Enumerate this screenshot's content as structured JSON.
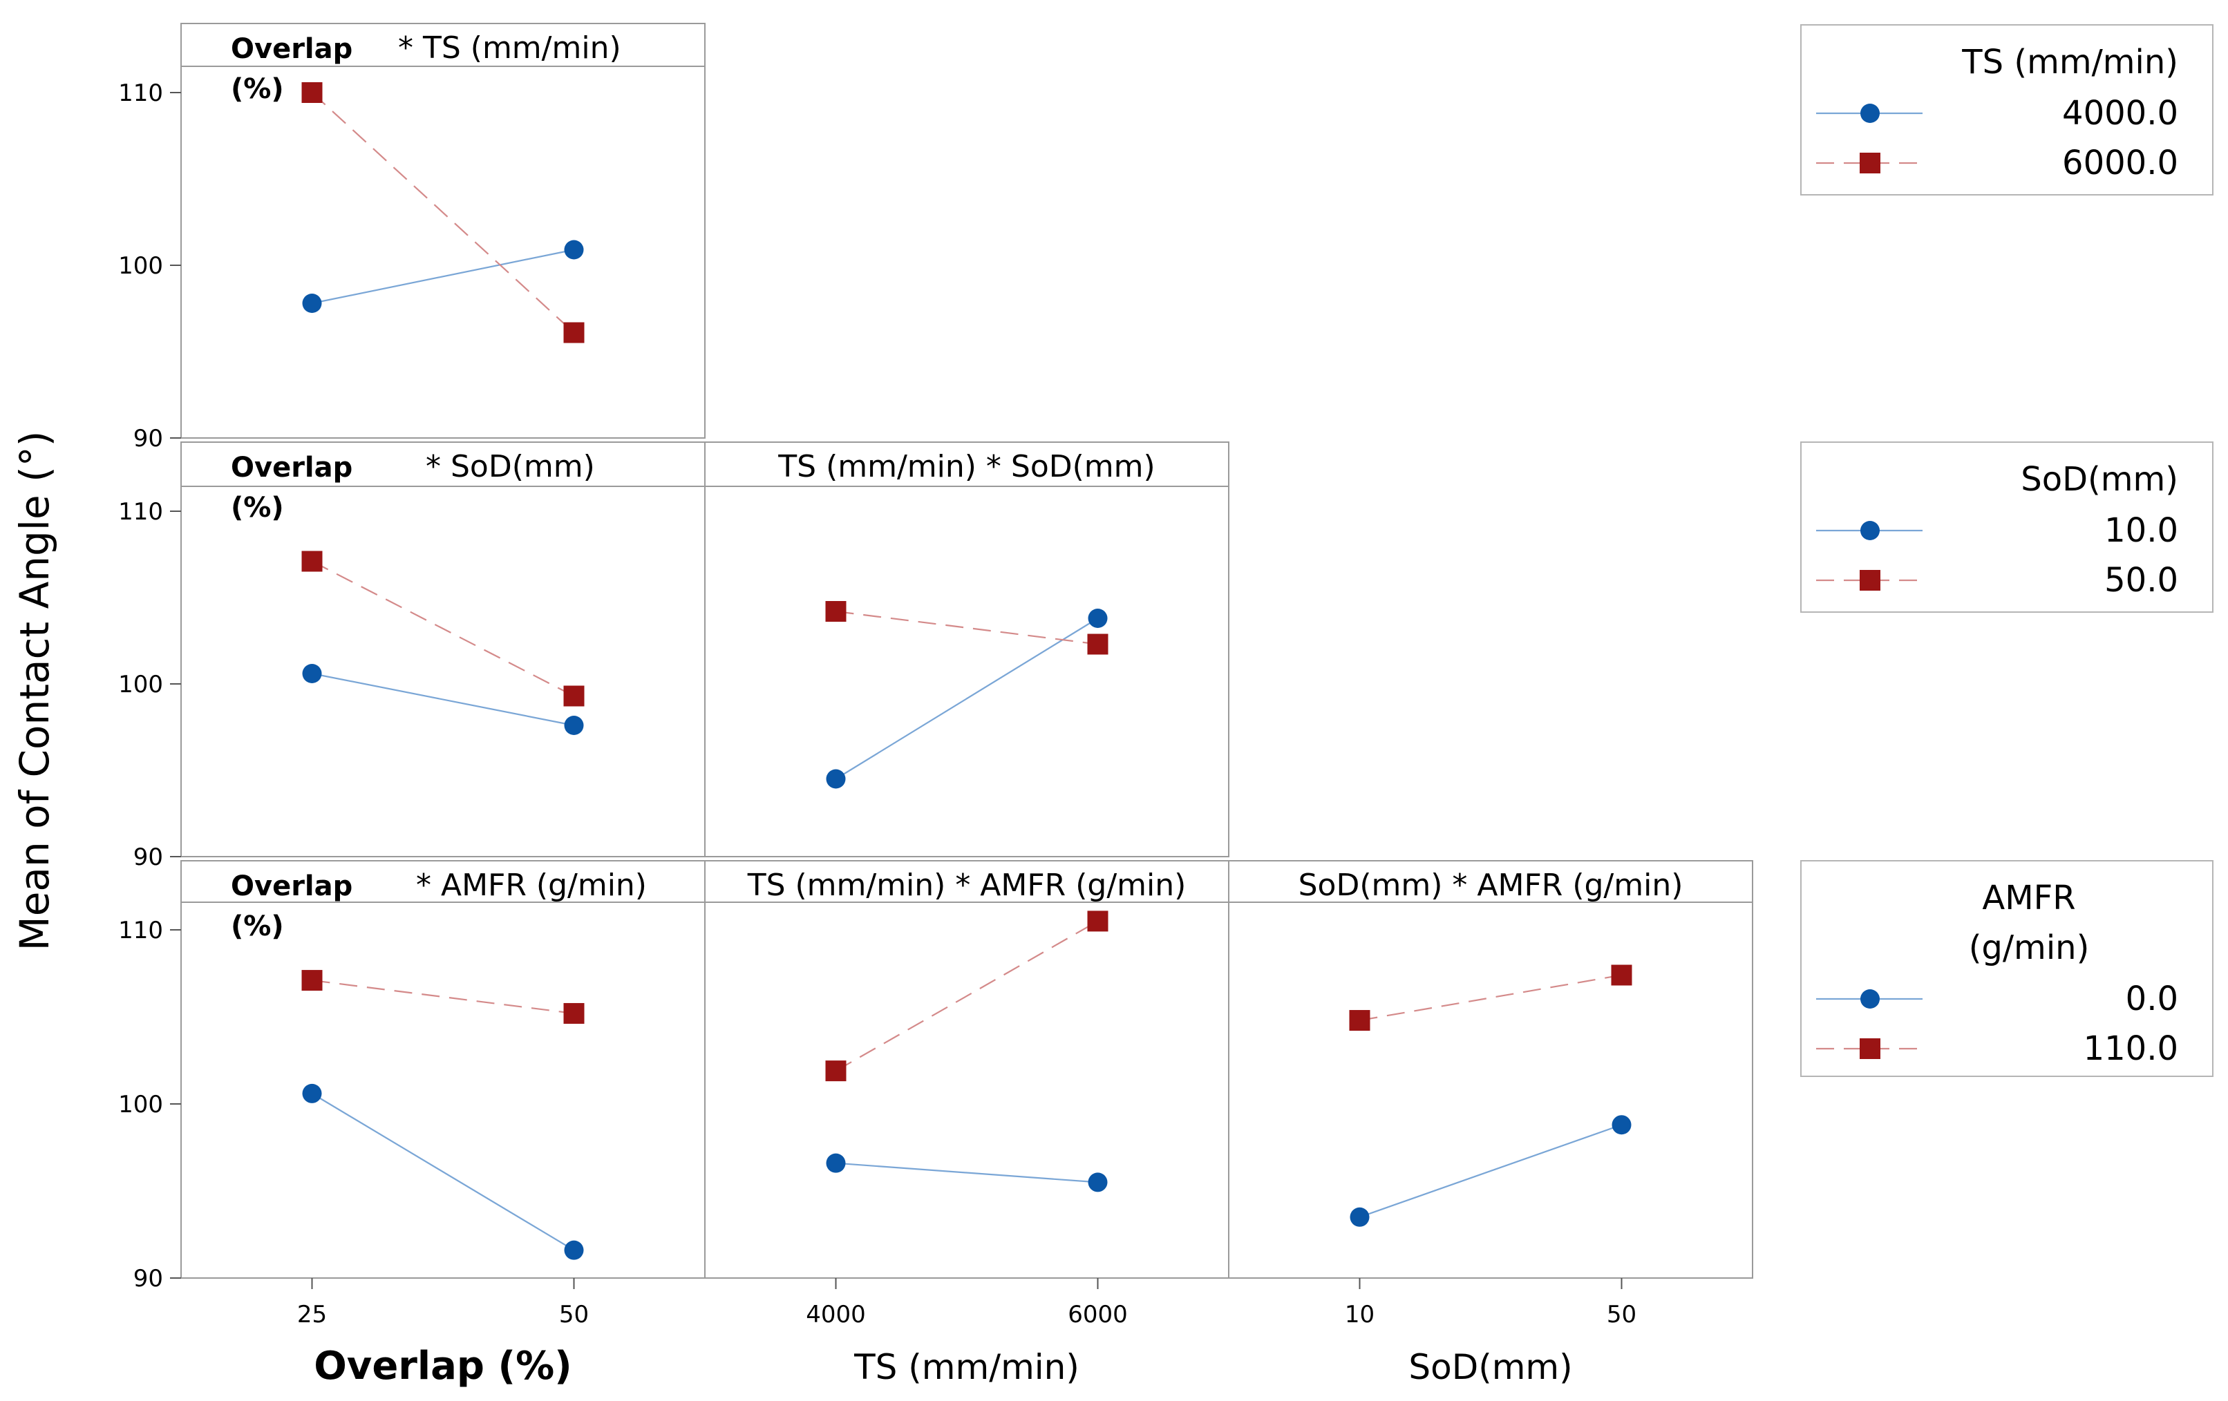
{
  "chart_data": {
    "type": "line",
    "ylabel": "Mean of Contact Angle (°)",
    "ylim": [
      90,
      110
    ],
    "yticks": [
      90,
      100,
      110
    ],
    "colors": {
      "level1": "#0a56a6",
      "level2": "#9a1414",
      "level1_line": "#7aa6d6",
      "level2_line": "#d48a8a"
    },
    "factors": [
      {
        "name": "Overlap (%)",
        "title_line1": "Overlap",
        "title_line2": "(%)",
        "levels": [
          "25",
          "50"
        ]
      },
      {
        "name": "TS (mm/min)",
        "levels": [
          "4000",
          "6000"
        ]
      },
      {
        "name": "SoD(mm)",
        "levels": [
          "10",
          "50"
        ]
      }
    ],
    "legends": [
      {
        "title": "TS (mm/min)",
        "entries": [
          "4000.0",
          "6000.0"
        ]
      },
      {
        "title": "SoD(mm)",
        "entries": [
          "10.0",
          "50.0"
        ]
      },
      {
        "title_line1": "AMFR",
        "title_line2": "(g/min)",
        "entries": [
          "0.0",
          "110.0"
        ]
      }
    ],
    "panels": [
      {
        "row": 0,
        "col": 0,
        "title": "* TS (mm/min)",
        "series": [
          {
            "values": [
              97.8,
              100.9
            ]
          },
          {
            "values": [
              110.0,
              96.1
            ]
          }
        ]
      },
      {
        "row": 1,
        "col": 0,
        "title": "* SoD(mm)",
        "series": [
          {
            "values": [
              100.6,
              97.6
            ]
          },
          {
            "values": [
              107.1,
              99.3
            ]
          }
        ]
      },
      {
        "row": 1,
        "col": 1,
        "title": "TS (mm/min) * SoD(mm)",
        "series": [
          {
            "values": [
              94.5,
              103.8
            ]
          },
          {
            "values": [
              104.2,
              102.3
            ]
          }
        ]
      },
      {
        "row": 2,
        "col": 0,
        "title": "* AMFR (g/min)",
        "series": [
          {
            "values": [
              100.6,
              91.6
            ]
          },
          {
            "values": [
              107.1,
              105.2
            ]
          }
        ]
      },
      {
        "row": 2,
        "col": 1,
        "title": "TS (mm/min) * AMFR (g/min)",
        "series": [
          {
            "values": [
              96.6,
              95.5
            ]
          },
          {
            "values": [
              101.9,
              110.5
            ]
          }
        ]
      },
      {
        "row": 2,
        "col": 2,
        "title": "SoD(mm) * AMFR (g/min)",
        "series": [
          {
            "values": [
              93.5,
              98.8
            ]
          },
          {
            "values": [
              104.8,
              107.4
            ]
          }
        ]
      }
    ]
  }
}
